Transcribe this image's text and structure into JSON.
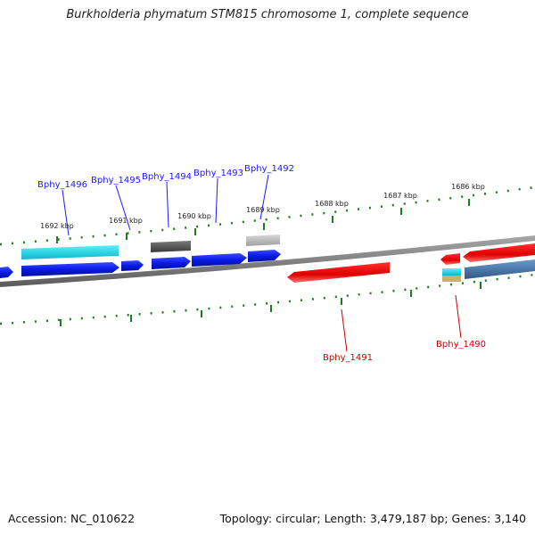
{
  "title": "Burkholderia phymatum STM815 chromosome 1, complete sequence",
  "accession": "Accession: NC_010622",
  "topology": "Topology: circular; Length: 3,479,187 bp; Genes: 3,140",
  "scale_labels": [
    "1692 kbp",
    "1691 kbp",
    "1690 kbp",
    "1689 kbp",
    "1688 kbp",
    "1687 kbp",
    "1686 kbp"
  ],
  "genes_forward": [
    "Bphy_1496",
    "Bphy_1495",
    "Bphy_1494",
    "Bphy_1493",
    "Bphy_1492"
  ],
  "genes_reverse": [
    "Bphy_1491",
    "Bphy_1490"
  ],
  "colors": {
    "forward_label": "#1a1aff",
    "reverse_label": "#cc0000",
    "tick": "#1e7d1e",
    "backbone": "#7a7a7a",
    "blue": "#0a1ae6",
    "cyan": "#16d8e6",
    "dark_gray": "#5a5a5a",
    "light_gray": "#b8b8b8",
    "red": "#e80000",
    "steel": "#4a78a8",
    "tan": "#c8b070"
  }
}
